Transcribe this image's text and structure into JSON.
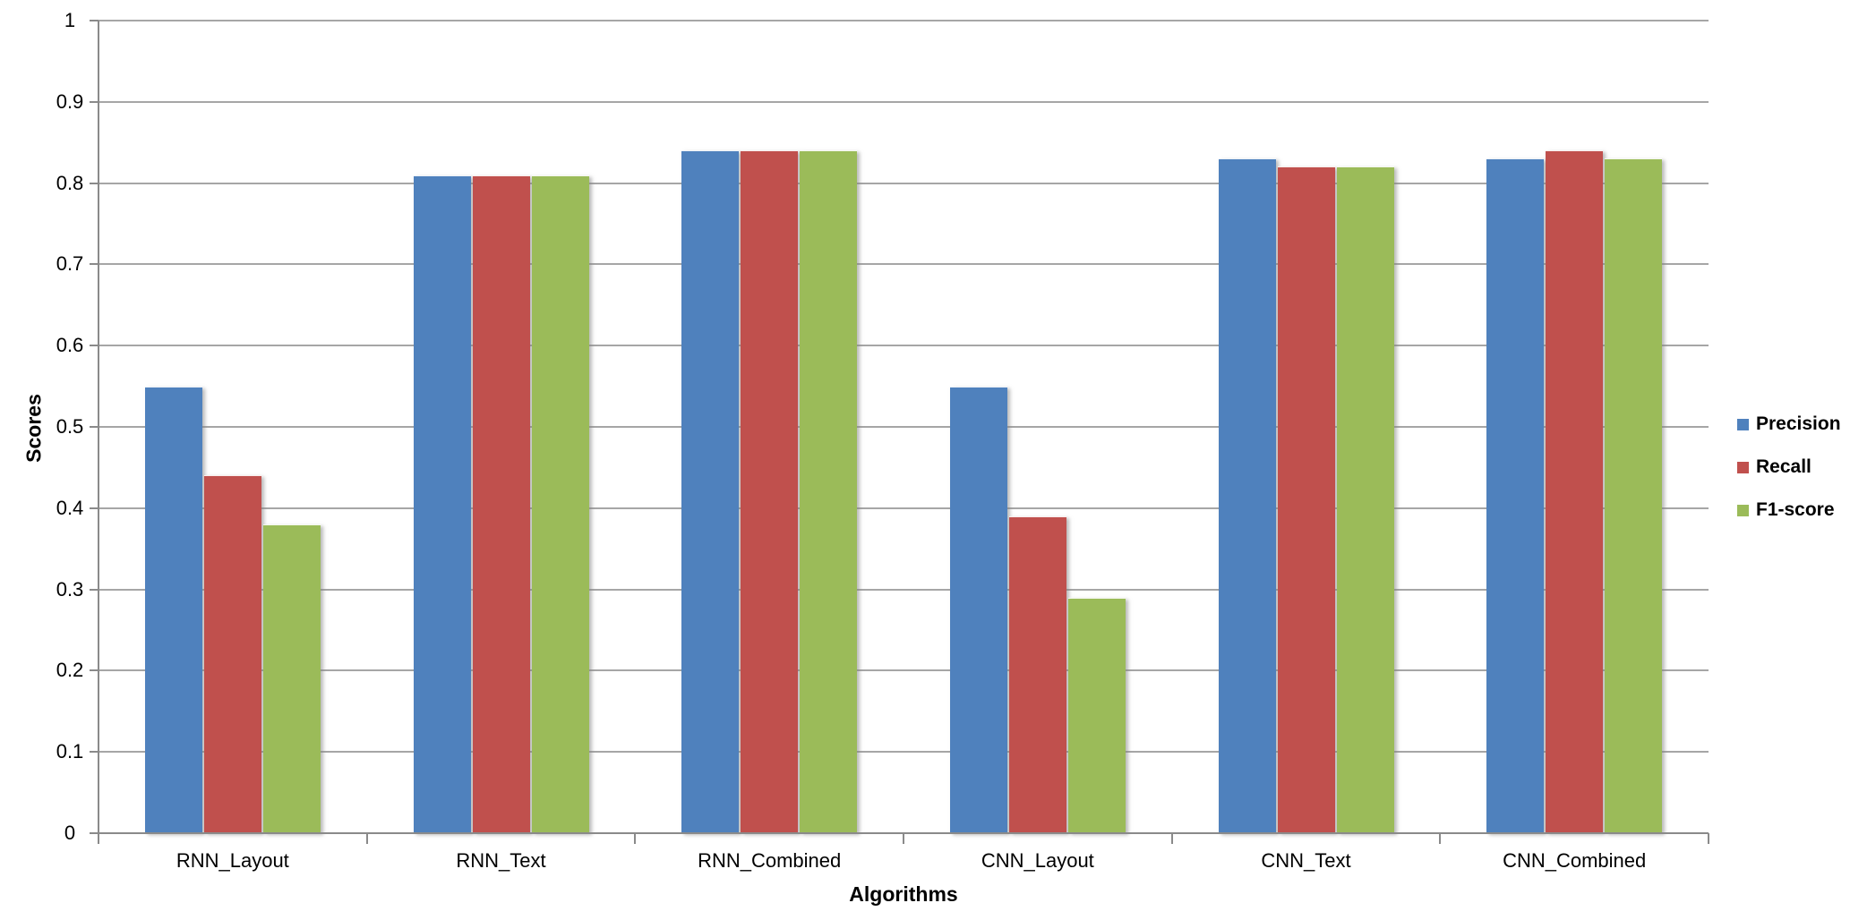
{
  "chart_data": {
    "type": "bar",
    "title": "",
    "categories": [
      "RNN_Layout",
      "RNN_Text",
      "RNN_Combined",
      "CNN_Layout",
      "CNN_Text",
      "CNN_Combined"
    ],
    "series": [
      {
        "name": "Precision",
        "color": "#4F81BD",
        "values": [
          0.55,
          0.81,
          0.84,
          0.55,
          0.83,
          0.83
        ]
      },
      {
        "name": "Recall",
        "color": "#C0504D",
        "values": [
          0.44,
          0.81,
          0.84,
          0.39,
          0.82,
          0.84
        ]
      },
      {
        "name": "F1-score",
        "color": "#9BBB59",
        "values": [
          0.38,
          0.81,
          0.84,
          0.29,
          0.82,
          0.83
        ]
      }
    ],
    "xlabel": "Algorithms",
    "ylabel": "Scores",
    "ylim": [
      0,
      1
    ],
    "ytick_step": 0.1,
    "ytick_labels": [
      "0",
      "0.1",
      "0.2",
      "0.3",
      "0.4",
      "0.5",
      "0.6",
      "0.7",
      "0.8",
      "0.9",
      "1"
    ],
    "grid": true,
    "legend_position": "right"
  },
  "colors": {
    "grid": "#A6A6A6",
    "axis": "#8A8A8A",
    "text": "#000000",
    "background": "#FFFFFF"
  }
}
